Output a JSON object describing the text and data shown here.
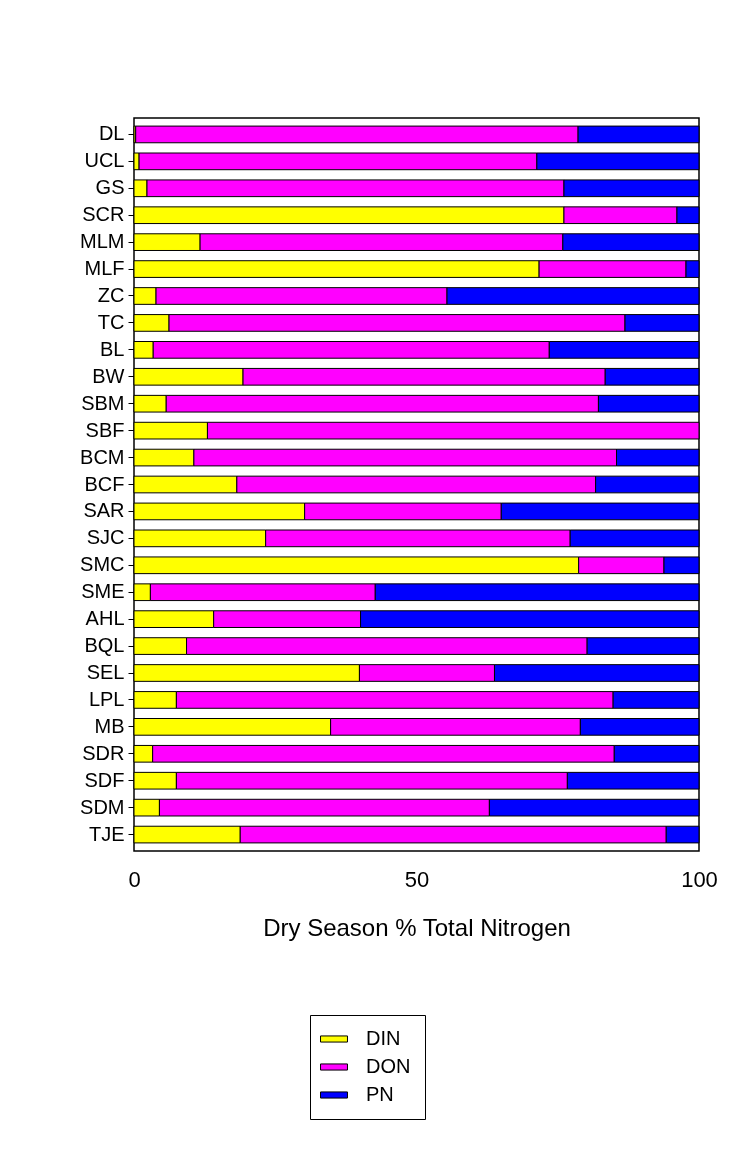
{
  "chart_data": {
    "type": "bar",
    "orientation": "horizontal",
    "stacked": true,
    "xlabel": "Dry Season % Total Nitrogen",
    "xlim": [
      0,
      100
    ],
    "xticks": [
      0,
      50,
      100
    ],
    "legend": "bottom",
    "grid": false,
    "categories": [
      "DL",
      "UCL",
      "GS",
      "SCR",
      "MLM",
      "MLF",
      "ZC",
      "TC",
      "BL",
      "BW",
      "SBM",
      "SBF",
      "BCM",
      "BCF",
      "SAR",
      "SJC",
      "SMC",
      "SME",
      "AHL",
      "BQL",
      "SEL",
      "LPL",
      "MB",
      "SDR",
      "SDF",
      "SDM",
      "TJE"
    ],
    "series": [
      {
        "name": "DIN",
        "color": "#ffff00",
        "values": [
          0.3,
          0.9,
          2.3,
          76.1,
          11.7,
          71.7,
          3.9,
          6.2,
          3.4,
          19.3,
          5.7,
          13.0,
          10.6,
          18.2,
          30.2,
          23.3,
          78.7,
          2.9,
          14.1,
          9.3,
          39.9,
          7.5,
          34.8,
          3.3,
          7.5,
          4.5,
          18.8
        ]
      },
      {
        "name": "DON",
        "color": "#ff00ff",
        "values": [
          78.3,
          70.4,
          73.8,
          20.0,
          64.2,
          26.0,
          51.5,
          80.7,
          70.1,
          64.1,
          76.5,
          87.0,
          74.8,
          63.5,
          34.8,
          53.9,
          15.1,
          39.8,
          26.0,
          70.9,
          23.9,
          77.3,
          44.2,
          81.7,
          69.2,
          58.4,
          75.4
        ]
      },
      {
        "name": "PN",
        "color": "#0000ff",
        "values": [
          21.4,
          28.7,
          23.9,
          3.9,
          24.1,
          2.3,
          44.6,
          13.1,
          26.5,
          16.6,
          17.8,
          null,
          14.6,
          18.3,
          35.0,
          22.8,
          6.2,
          57.3,
          59.9,
          19.8,
          36.2,
          15.2,
          21.0,
          15.0,
          23.3,
          37.1,
          5.8
        ]
      }
    ]
  }
}
